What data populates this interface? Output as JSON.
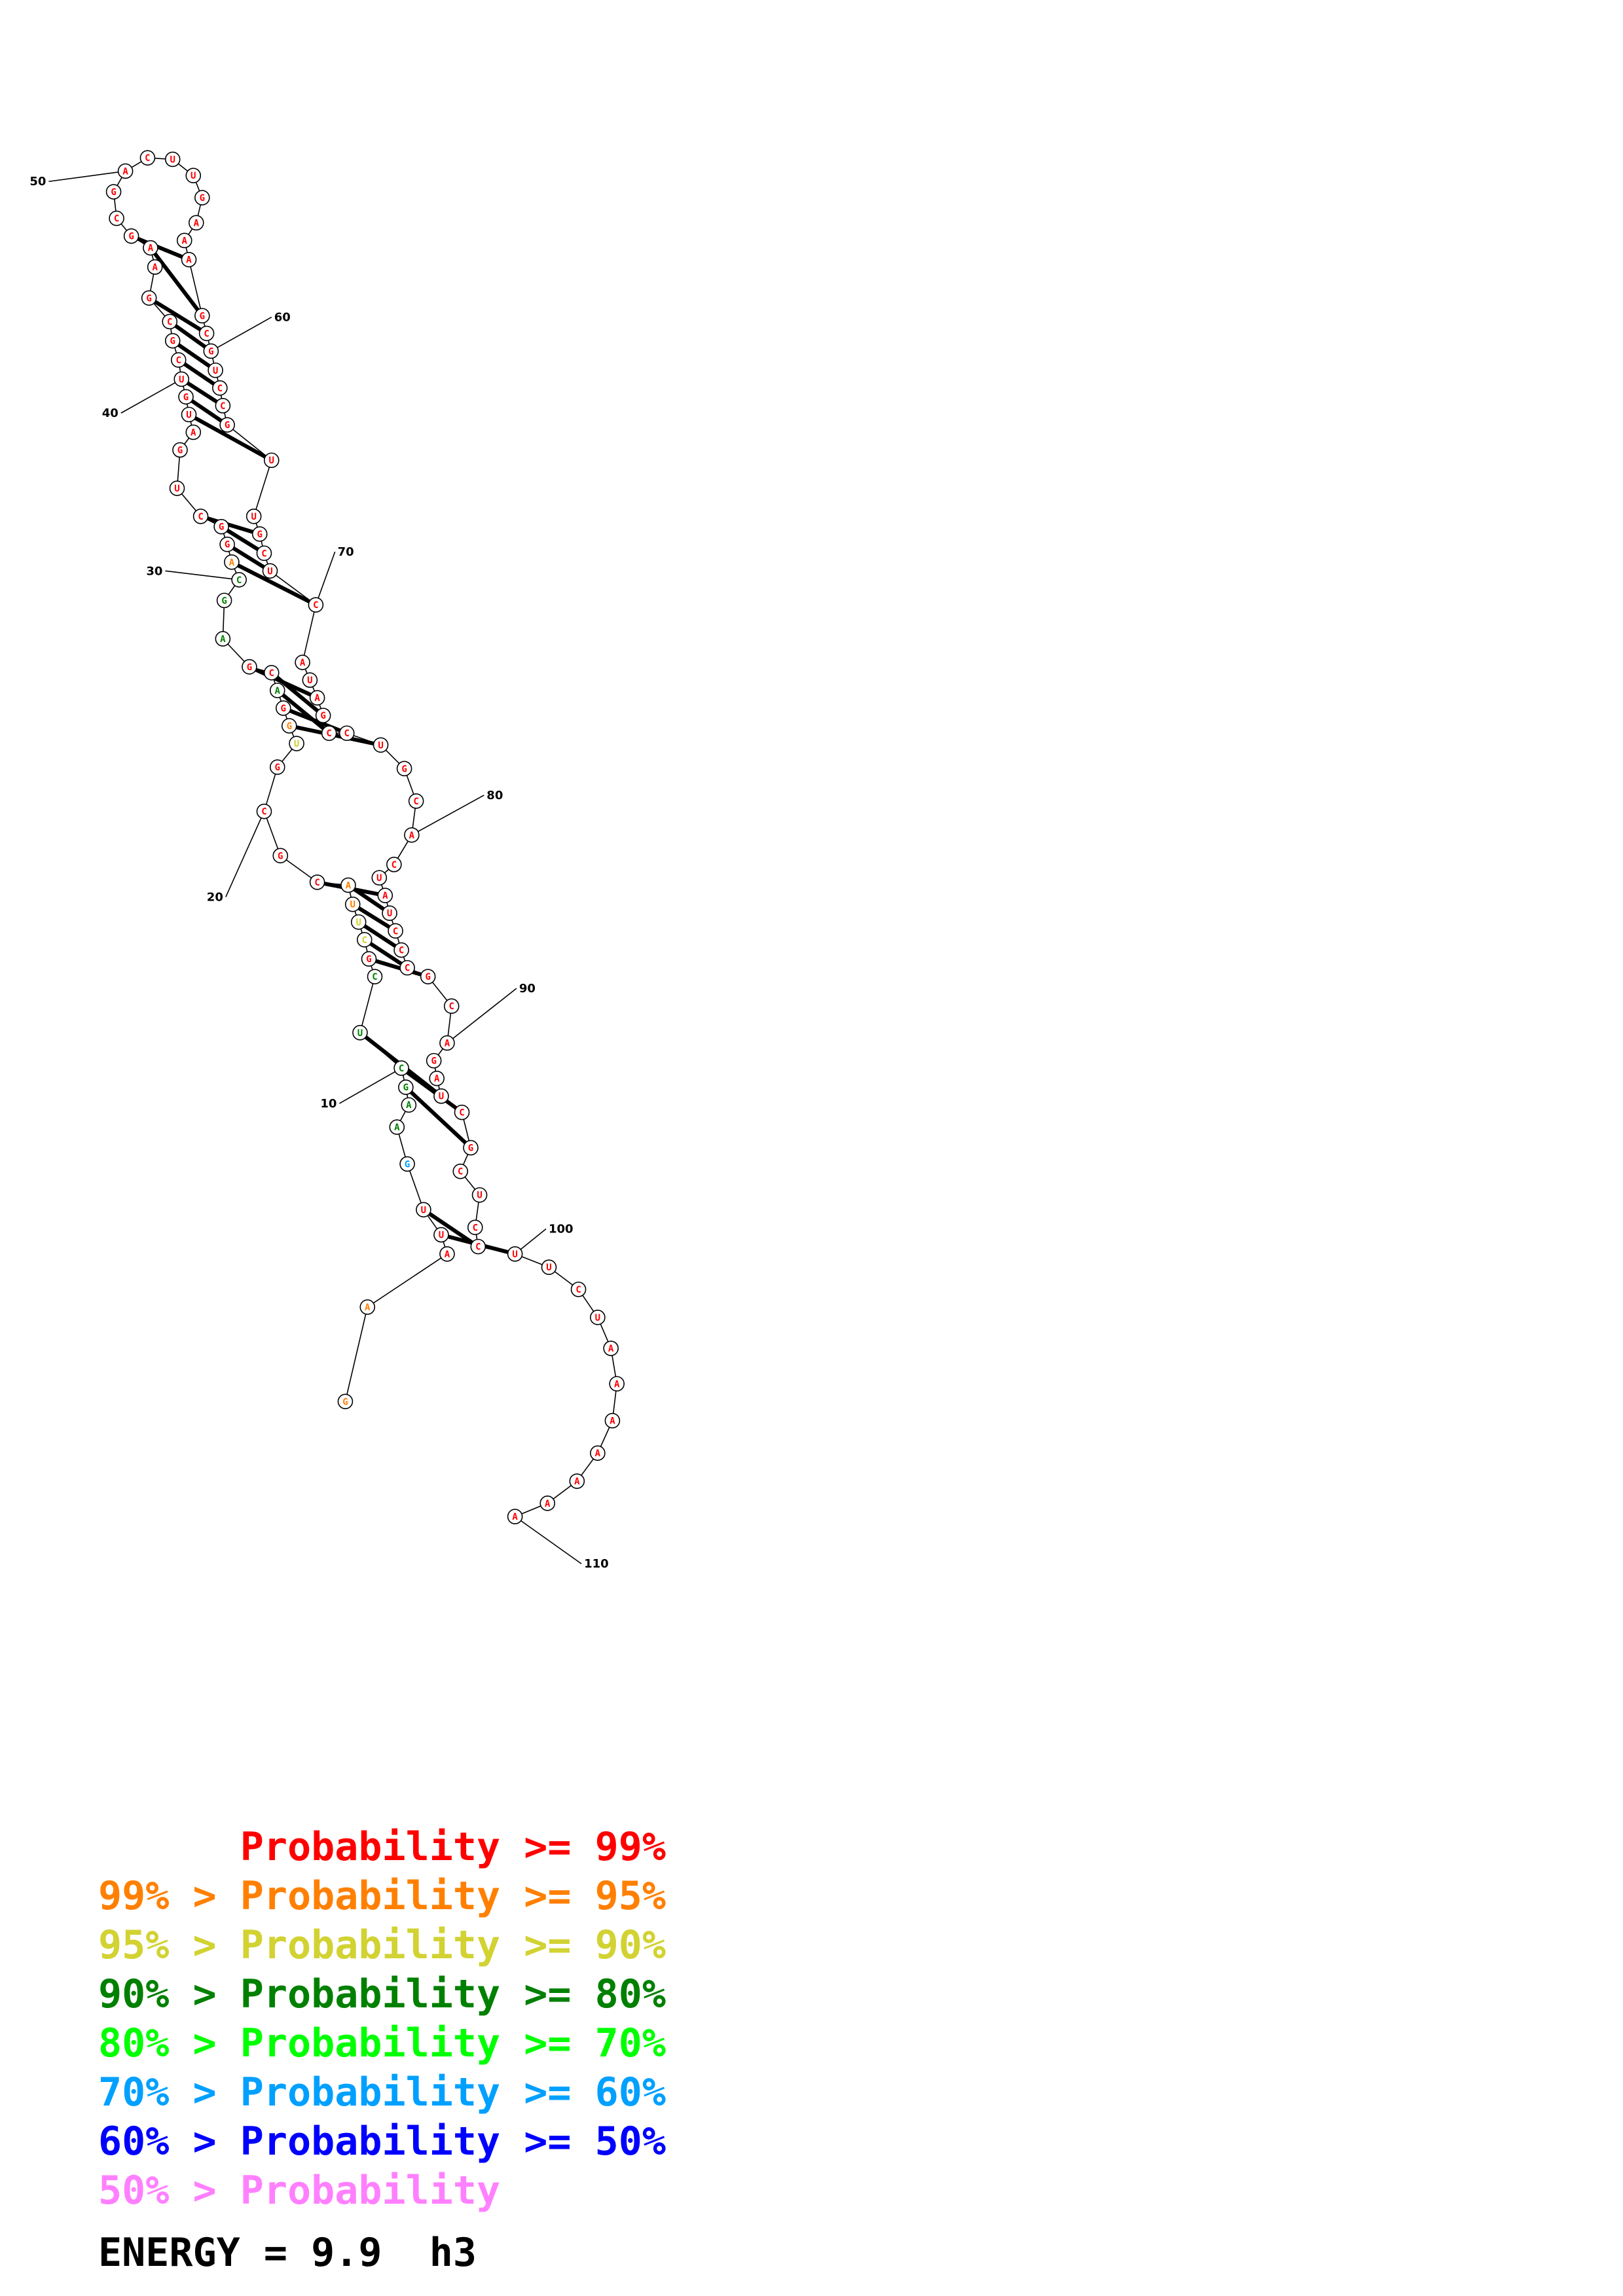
{
  "structure": {
    "sequence": "GAAUUGAAGCUCGCUUACGCGUGGACGAGCAGGCUGAUGUCGCGAAGCGACUUGAAAGCGUCCGUUGCUCAUAGCCUGCACUAUCCCGCAGAUCGCUCCUUCUAAAAAAAAAA",
    "base_colors": [
      "orange",
      "orange",
      "red",
      "red",
      "red",
      "skyblue",
      "darkgreen",
      "darkgreen",
      "darkgreen",
      "darkgreen",
      "darkgreen",
      "darkgreen",
      "red",
      "yellow",
      "yellow",
      "orange",
      "orange",
      "red",
      "red",
      "red",
      "red",
      "yellow",
      "orange",
      "red",
      "darkgreen",
      "red",
      "red",
      "darkgreen",
      "darkgreen",
      "darkgreen",
      "orange",
      "red",
      "red",
      "red",
      "red",
      "red",
      "red",
      "red",
      "red",
      "red",
      "red",
      "red",
      "red",
      "red",
      "red",
      "red",
      "red",
      "red",
      "red",
      "red",
      "red",
      "red",
      "red",
      "red",
      "red",
      "red",
      "red",
      "red",
      "red",
      "red",
      "red",
      "red",
      "red",
      "red",
      "red",
      "red",
      "red",
      "red",
      "red",
      "red",
      "red",
      "red",
      "red",
      "red",
      "red",
      "red",
      "red",
      "red",
      "red",
      "red",
      "red",
      "red",
      "red",
      "red",
      "red",
      "red",
      "red",
      "red",
      "red",
      "red",
      "red",
      "red",
      "red",
      "red",
      "red",
      "red",
      "red",
      "red",
      "red",
      "red",
      "red",
      "red",
      "red",
      "red",
      "red",
      "red",
      "red",
      "red",
      "red",
      "red"
    ],
    "position_labels": [
      "10",
      "20",
      "30",
      "40",
      "50",
      "60",
      "70",
      "80",
      "90",
      "100",
      "110"
    ]
  },
  "legend": {
    "rows": [
      {
        "text": "      Probability >= 99%",
        "color": "#ff0000"
      },
      {
        "text": "99% > Probability >= 95%",
        "color": "#ff8000"
      },
      {
        "text": "95% > Probability >= 90%",
        "color": "#d2d232"
      },
      {
        "text": "90% > Probability >= 80%",
        "color": "#008000"
      },
      {
        "text": "80% > Probability >= 70%",
        "color": "#00ff00"
      },
      {
        "text": "70% > Probability >= 60%",
        "color": "#00a0ff"
      },
      {
        "text": "60% > Probability >= 50%",
        "color": "#0000ff"
      },
      {
        "text": "50% > Probability",
        "color": "#ff80ff"
      }
    ],
    "energy_text": "ENERGY = 9.9  h3"
  },
  "colors": {
    "red": "#ff0000",
    "orange": "#ff8000",
    "yellow": "#d2d232",
    "darkgreen": "#008000",
    "green": "#00ff00",
    "skyblue": "#00a0ff",
    "blue": "#0000ff",
    "pink": "#ff80ff"
  }
}
